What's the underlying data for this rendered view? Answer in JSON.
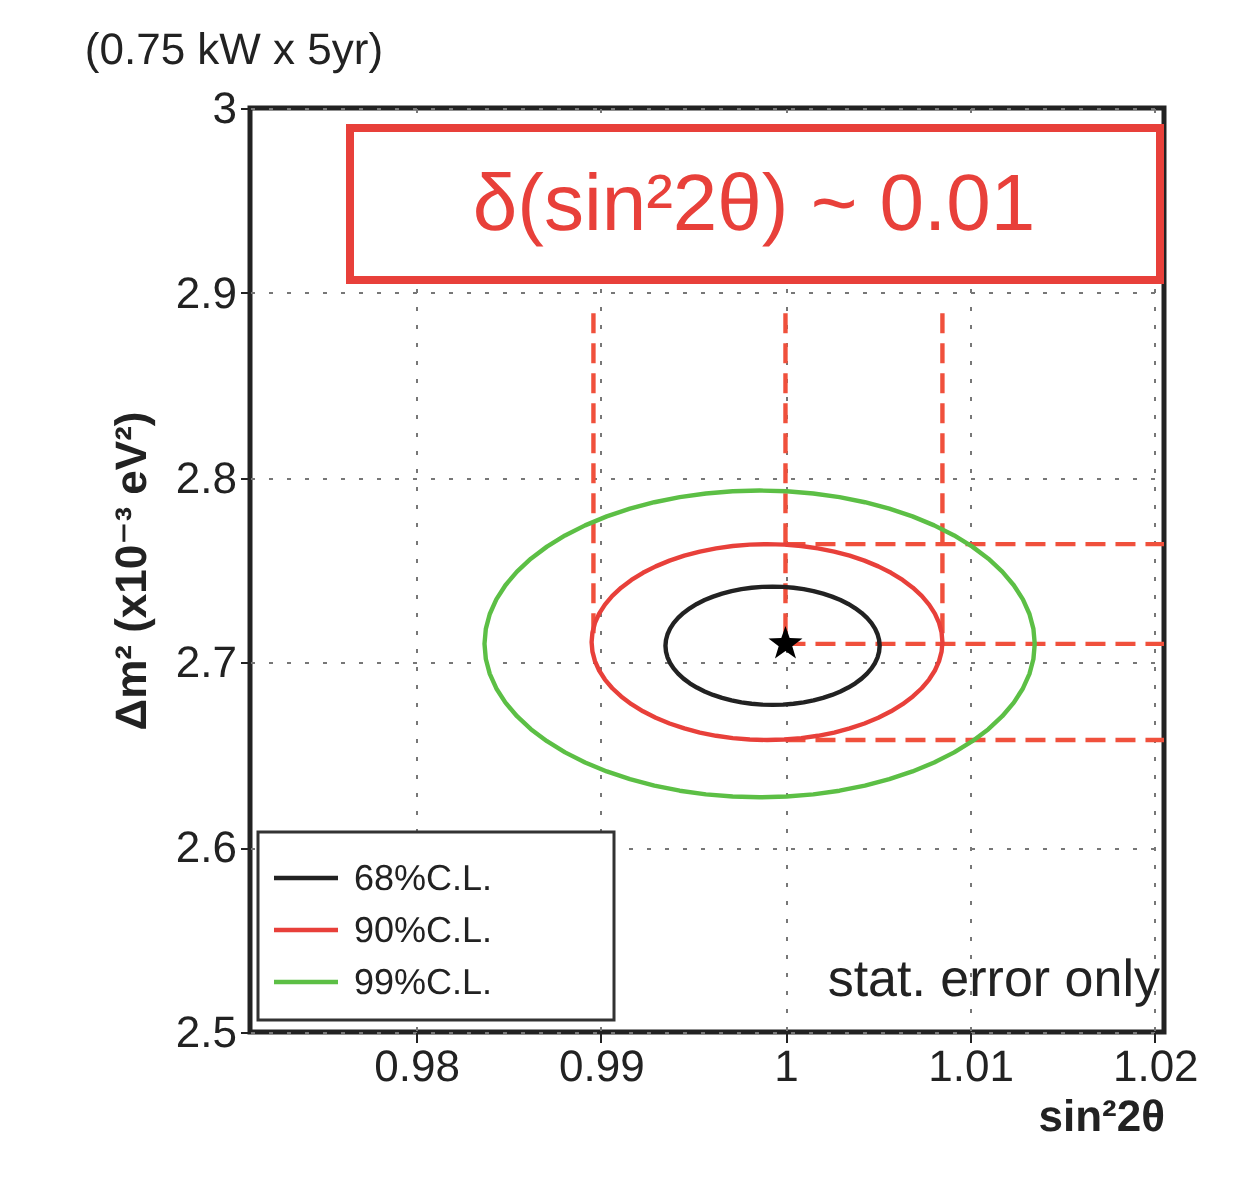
{
  "chart_data": {
    "type": "line",
    "title": "(0.75 kW x 5yr)",
    "xlabel": "sin²2θ",
    "ylabel": "Δm² (x10⁻³ eV²)",
    "xlim": [
      0.971,
      1.0205
    ],
    "ylim": [
      2.5,
      3
    ],
    "xticks": [
      0.98,
      0.99,
      1,
      1.01,
      1.02
    ],
    "yticks": [
      2.5,
      2.6,
      2.7,
      2.8,
      2.9,
      3
    ],
    "grid": true,
    "marker": "none",
    "line_style": "dashed",
    "annotations": [
      "δ(sin²2θ) ~ 0.01",
      "stat. error only",
      "68%C.L.",
      "90%C.L.",
      "99%C.L."
    ],
    "series": [
      {
        "color": "#f0503c",
        "x": [
          0.9896,
          0.9896
        ],
        "values": [
          2.889,
          2.711
        ]
      },
      {
        "color": "#f0503c",
        "x": [
          1.0,
          1.0
        ],
        "values": [
          2.889,
          2.71
        ]
      },
      {
        "color": "#f0503c",
        "x": [
          1.0085,
          1.0085
        ],
        "values": [
          2.889,
          2.711
        ]
      },
      {
        "color": "#f0503c",
        "x": [
          1.0,
          1.0205
        ],
        "values": [
          2.764,
          2.764
        ]
      },
      {
        "color": "#f0503c",
        "x": [
          1.0,
          1.0205
        ],
        "values": [
          2.71,
          2.71
        ]
      },
      {
        "color": "#f0503c",
        "x": [
          1.0,
          1.0205
        ],
        "values": [
          2.658,
          2.658
        ]
      },
      {
        "type": "scatter",
        "marker": "star",
        "color": "#000000",
        "x": [
          1.0
        ],
        "values": [
          2.71
        ]
      }
    ]
  }
}
